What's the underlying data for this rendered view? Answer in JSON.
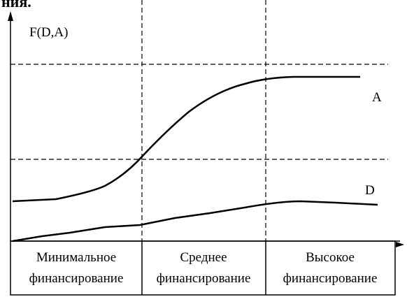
{
  "header_fragment": "ния.",
  "axis_label": "F(D,A)",
  "curves": [
    {
      "label": "A"
    },
    {
      "label": "D"
    }
  ],
  "zones": [
    {
      "lines": [
        "Минимальное",
        "финансирование"
      ]
    },
    {
      "lines": [
        "Среднее",
        "финансирование"
      ]
    },
    {
      "lines": [
        "Высокое",
        "финансирование"
      ]
    }
  ]
}
